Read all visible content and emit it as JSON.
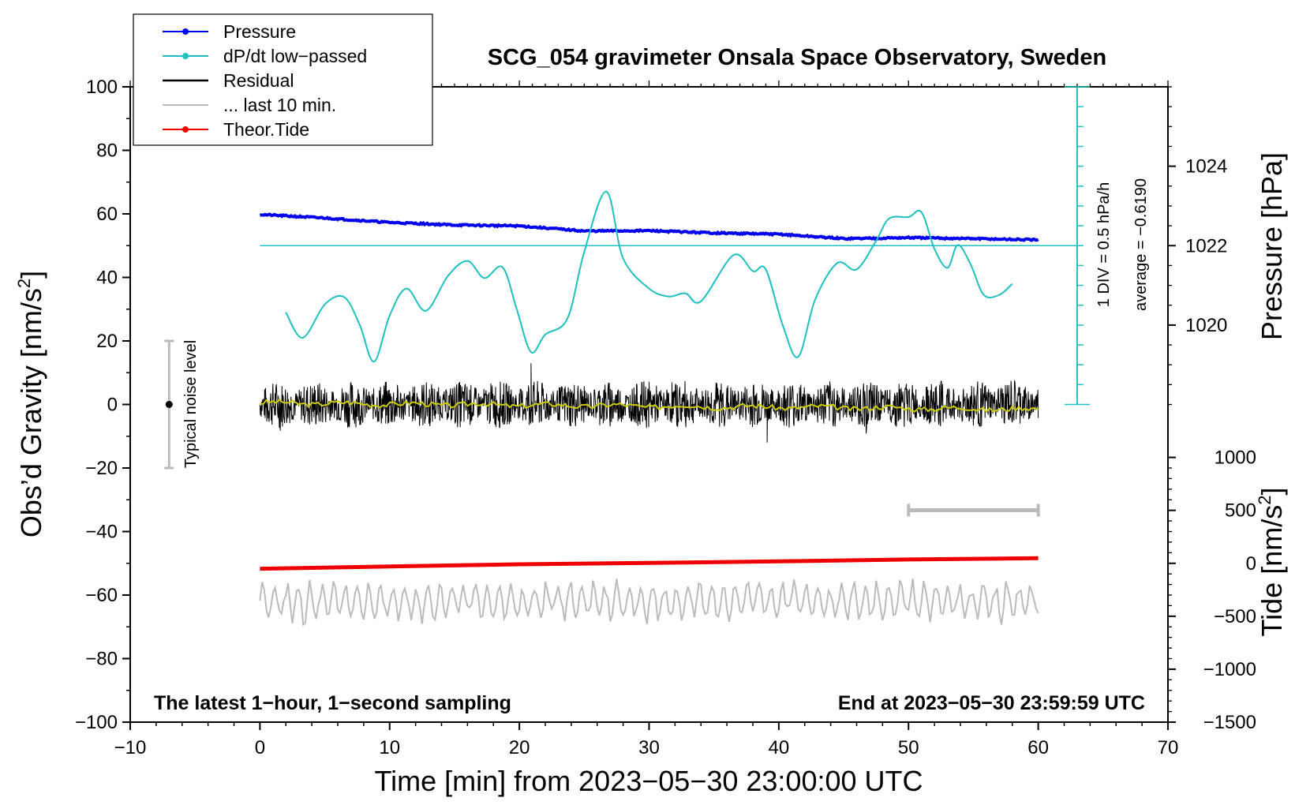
{
  "chart_data": {
    "type": "line",
    "title": "SCG_054 gravimeter Onsala Space Observatory, Sweden",
    "xlabel": "Time [min] from 2023−05−30 23:00:00 UTC",
    "ylabel_left": "Obs’d Gravity [nm/s²]",
    "ylabel_left_parts": {
      "main": "Obs’d Gravity [nm/s",
      "sup": "2",
      "end": "]"
    },
    "ylabel_right_top": "Pressure [hPa]",
    "ylabel_right_bottom": "Tide [nm/s²]",
    "ylabel_right_bottom_parts": {
      "main": "Tide [nm/s",
      "sup": "2",
      "end": "]"
    },
    "xlim": [
      -10,
      70
    ],
    "ylim_left": [
      -100,
      100
    ],
    "x_ticks": [
      -10,
      0,
      10,
      20,
      30,
      40,
      50,
      60,
      70
    ],
    "x_tick_labels": [
      "−10",
      "0",
      "10",
      "20",
      "30",
      "40",
      "50",
      "60",
      "70"
    ],
    "y_left_ticks": [
      100,
      80,
      60,
      40,
      20,
      0,
      -20,
      -40,
      -60,
      -80,
      -100
    ],
    "y_left_tick_labels": [
      "100",
      "80",
      "60",
      "40",
      "20",
      "0",
      "−20",
      "−40",
      "−60",
      "−80",
      "−100"
    ],
    "pressure_axis": {
      "ticks": [
        1024,
        1022,
        1020
      ],
      "tick_labels": [
        "1024",
        "1022",
        "1020"
      ],
      "mapping_note": "1020 hPa at gravity 25, 1024 hPa at gravity 75"
    },
    "tide_axis": {
      "ticks": [
        1000,
        500,
        0,
        -500,
        -1000,
        -1500
      ],
      "tick_labels": [
        "1000",
        "500",
        "0",
        "−500",
        "−1000",
        "−1500"
      ],
      "mapping_note": "0 nm/s² at gravity -50, 500 nm/s² at gravity -33.3"
    },
    "dpdt_scale": {
      "label_div": "1 DIV = 0.5 hPa/h",
      "label_avg": "average = −0.6190",
      "baseline_gravity": 50,
      "scale_top": 100,
      "scale_bottom": 0,
      "scale_x": 63
    },
    "noise_bar": {
      "x": -7,
      "center": 0,
      "low": -20,
      "high": 20,
      "label": "Typical noise level"
    },
    "tide_scale_bar": {
      "x_start": 50,
      "x_end": 60,
      "y": -33.3
    },
    "annotations": {
      "bottom_left": "The latest 1−hour, 1−second sampling",
      "bottom_right": "End at 2023−05−30 23:59:59 UTC"
    },
    "legend": [
      {
        "label": "Pressure",
        "color": "#0000ee",
        "marker": true
      },
      {
        "label": "dP/dt low−passed",
        "color": "#20c0c0",
        "marker": true
      },
      {
        "label": "Residual",
        "color": "#000000",
        "marker": false
      },
      {
        "label": "... last 10 min.",
        "color": "#bbbbbb",
        "marker": false
      },
      {
        "label": "Theor.Tide",
        "color": "#ee0000",
        "marker": true
      }
    ],
    "series": [
      {
        "name": "Pressure",
        "color": "#0000ee",
        "x": [
          0,
          5,
          10,
          15,
          20,
          25,
          30,
          35,
          40,
          45,
          50,
          55,
          60
        ],
        "y": [
          59.8,
          58.7,
          57.3,
          56.5,
          56.2,
          54.6,
          54.7,
          54.0,
          53.6,
          52.2,
          52.5,
          52.2,
          51.8
        ]
      },
      {
        "name": "dP/dt low-passed",
        "color": "#20c0c0",
        "x": [
          2,
          3.3,
          5,
          6.5,
          7.7,
          8.8,
          10,
          11.3,
          12.8,
          14.5,
          16,
          17.3,
          18.7,
          19.8,
          20.9,
          22,
          23.7,
          25,
          26.7,
          28,
          30,
          31.5,
          32.8,
          34,
          36.5,
          38,
          39,
          40.3,
          41.5,
          42.8,
          44.5,
          46,
          47.5,
          48.5,
          50,
          51,
          52,
          53,
          53.8,
          54.8,
          55.8,
          57,
          58
        ],
        "y": [
          29,
          21,
          31.5,
          33.8,
          25,
          13.5,
          28,
          36.5,
          29.5,
          40.5,
          45.2,
          39.8,
          43.2,
          30,
          16.5,
          22,
          27,
          48,
          67,
          46,
          36.5,
          34,
          35,
          32.5,
          47,
          42,
          42.5,
          25,
          15,
          33,
          44.5,
          42.5,
          51.5,
          58.5,
          59,
          60.5,
          49,
          43,
          50.2,
          44,
          34.5,
          34.5,
          38
        ]
      },
      {
        "name": "Residual",
        "color": "#000000",
        "x_start": 0,
        "x_end": 60,
        "seed": 7,
        "amplitude": 7.5,
        "spikes": [
          [
            20.9,
            13
          ],
          [
            39.1,
            -12
          ]
        ]
      },
      {
        "name": "Residual smoothed",
        "color": "#cccc00",
        "x_start": 0,
        "x_end": 60,
        "y_start": 0.5,
        "y_end": -1.5
      },
      {
        "name": "... last 10 min.",
        "color": "#bbbbbb",
        "x_start": 0,
        "x_end": 60,
        "center": -62,
        "amplitude": 7,
        "seed": 13
      },
      {
        "name": "Theor.Tide",
        "color": "#ee0000",
        "x": [
          0,
          10,
          20,
          30,
          40,
          50,
          60
        ],
        "y": [
          -51.7,
          -51.0,
          -50.3,
          -49.9,
          -49.4,
          -48.8,
          -48.4
        ]
      }
    ]
  }
}
